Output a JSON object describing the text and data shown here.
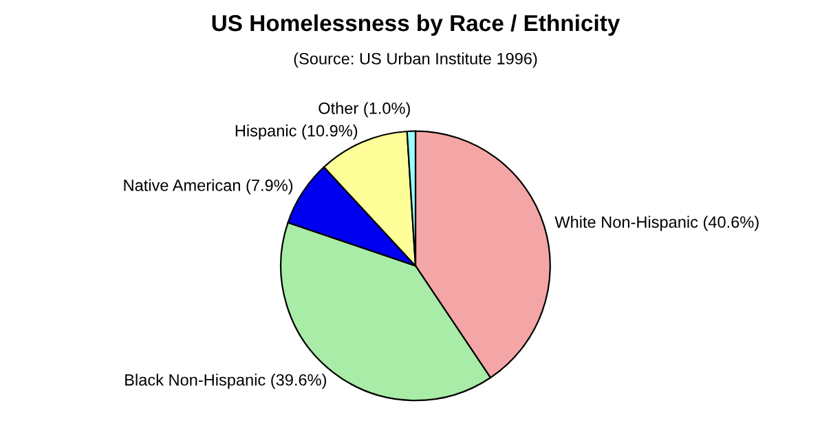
{
  "chart_data": {
    "type": "pie",
    "title": "US Homelessness by Race / Ethnicity",
    "subtitle": "(Source: US Urban Institute 1996)",
    "categories": [
      "White Non-Hispanic",
      "Black Non-Hispanic",
      "Native American",
      "Hispanic",
      "Other"
    ],
    "values": [
      40.6,
      39.6,
      7.9,
      10.9,
      1.0
    ],
    "value_labels": [
      "(40.6%)",
      "(39.6%)",
      "(7.9%)",
      "(10.9%)",
      "(1.0%)"
    ],
    "colors": [
      "#f4a6a6",
      "#a8eca8",
      "#0000f0",
      "#ffff99",
      "#99ffff"
    ],
    "legend": false
  }
}
